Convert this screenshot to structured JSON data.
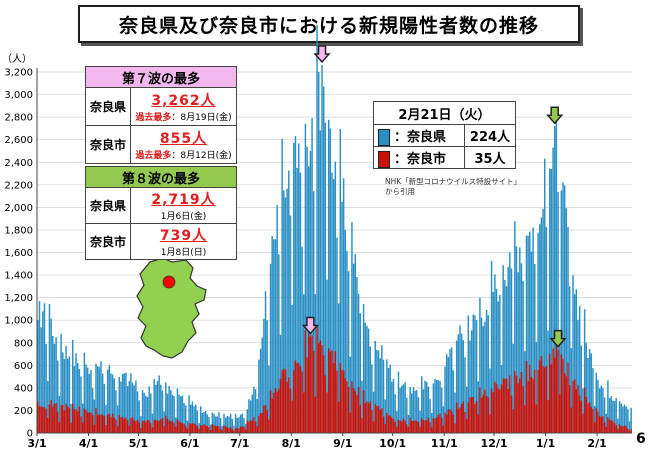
{
  "title": "奈良県及び奈良市における新規陽性者数の推移",
  "page_number": "6",
  "source_note": [
    "NHK「新型コロナウイルス特設サイト」",
    "から引用"
  ],
  "wave7": {
    "header": "第７波の最多",
    "rows": [
      {
        "label": "奈良県",
        "value": "3,262人",
        "sub_prefix": "過去最多",
        "sub_date": "：8月19日(金)"
      },
      {
        "label": "奈良市",
        "value": "855人",
        "sub_prefix": "過去最多",
        "sub_date": "：8月12日(金)"
      }
    ]
  },
  "wave8": {
    "header": "第８波の最多",
    "rows": [
      {
        "label": "奈良県",
        "value": "2,719人",
        "sub_date": "1月6日(金)"
      },
      {
        "label": "奈良市",
        "value": "739人",
        "sub_date": "1月8日(日)"
      }
    ]
  },
  "latest": {
    "date": "2月21日（火）",
    "rows": [
      {
        "label": "：奈良県",
        "value": "224人",
        "color": "#2a8fc4"
      },
      {
        "label": "：奈良市",
        "value": "35人",
        "color": "#c8140c"
      }
    ]
  },
  "colors": {
    "pref": "#2a8fc4",
    "city": "#c8140c",
    "map_fill": "#92d050",
    "map_dot": "#ff0000",
    "arrow_pink": "#f2b8ee",
    "arrow_green": "#93c94f"
  },
  "chart_data": {
    "type": "bar",
    "ylabel": "（人）",
    "ylim": [
      0,
      3200
    ],
    "yticks": [
      "0",
      "200",
      "400",
      "600",
      "800",
      "1,000",
      "1,200",
      "1,400",
      "1,600",
      "1,800",
      "2,000",
      "2,200",
      "2,400",
      "2,600",
      "2,800",
      "3,000",
      "3,200"
    ],
    "x_range": [
      "2022-03-01",
      "2023-02-21"
    ],
    "xticks": [
      {
        "date": "2022-03-01",
        "label": "3/1"
      },
      {
        "date": "2022-04-01",
        "label": "4/1"
      },
      {
        "date": "2022-05-01",
        "label": "5/1"
      },
      {
        "date": "2022-06-01",
        "label": "6/1"
      },
      {
        "date": "2022-07-01",
        "label": "7/1"
      },
      {
        "date": "2022-08-01",
        "label": "8/1"
      },
      {
        "date": "2022-09-01",
        "label": "9/1"
      },
      {
        "date": "2022-10-01",
        "label": "10/1"
      },
      {
        "date": "2022-11-01",
        "label": "11/1"
      },
      {
        "date": "2022-12-01",
        "label": "12/1"
      },
      {
        "date": "2023-01-01",
        "label": "1/1"
      },
      {
        "date": "2023-02-01",
        "label": "2/1"
      }
    ],
    "grid": true,
    "stacking": "overlay",
    "series": [
      {
        "name": "奈良県",
        "anchors": [
          [
            "2022-03-01",
            1000
          ],
          [
            "2022-03-05",
            1150
          ],
          [
            "2022-03-12",
            850
          ],
          [
            "2022-03-20",
            680
          ],
          [
            "2022-03-31",
            580
          ],
          [
            "2022-04-12",
            560
          ],
          [
            "2022-04-25",
            460
          ],
          [
            "2022-05-05",
            330
          ],
          [
            "2022-05-12",
            460
          ],
          [
            "2022-05-20",
            380
          ],
          [
            "2022-06-01",
            250
          ],
          [
            "2022-06-15",
            170
          ],
          [
            "2022-06-30",
            140
          ],
          [
            "2022-07-05",
            210
          ],
          [
            "2022-07-12",
            650
          ],
          [
            "2022-07-19",
            1500
          ],
          [
            "2022-07-27",
            2150
          ],
          [
            "2022-08-04",
            2350
          ],
          [
            "2022-08-12",
            2500
          ],
          [
            "2022-08-19",
            3262
          ],
          [
            "2022-08-24",
            2700
          ],
          [
            "2022-08-31",
            2050
          ],
          [
            "2022-09-07",
            1500
          ],
          [
            "2022-09-15",
            950
          ],
          [
            "2022-09-25",
            650
          ],
          [
            "2022-10-05",
            400
          ],
          [
            "2022-10-15",
            380
          ],
          [
            "2022-10-28",
            470
          ],
          [
            "2022-11-08",
            820
          ],
          [
            "2022-11-20",
            1000
          ],
          [
            "2022-11-30",
            1250
          ],
          [
            "2022-12-10",
            1600
          ],
          [
            "2022-12-20",
            1750
          ],
          [
            "2022-12-28",
            1850
          ],
          [
            "2023-01-06",
            2719
          ],
          [
            "2023-01-10",
            2150
          ],
          [
            "2023-01-17",
            1400
          ],
          [
            "2023-01-25",
            800
          ],
          [
            "2023-02-03",
            420
          ],
          [
            "2023-02-12",
            310
          ],
          [
            "2023-02-21",
            224
          ]
        ]
      },
      {
        "name": "奈良市",
        "anchors": [
          [
            "2022-03-01",
            280
          ],
          [
            "2022-03-20",
            220
          ],
          [
            "2022-04-12",
            160
          ],
          [
            "2022-05-05",
            100
          ],
          [
            "2022-05-15",
            130
          ],
          [
            "2022-06-01",
            80
          ],
          [
            "2022-06-30",
            40
          ],
          [
            "2022-07-12",
            150
          ],
          [
            "2022-07-25",
            480
          ],
          [
            "2022-08-05",
            620
          ],
          [
            "2022-08-12",
            855
          ],
          [
            "2022-08-19",
            780
          ],
          [
            "2022-08-31",
            560
          ],
          [
            "2022-09-15",
            280
          ],
          [
            "2022-10-05",
            110
          ],
          [
            "2022-10-25",
            130
          ],
          [
            "2022-11-15",
            270
          ],
          [
            "2022-12-05",
            430
          ],
          [
            "2022-12-25",
            560
          ],
          [
            "2023-01-08",
            739
          ],
          [
            "2023-01-17",
            460
          ],
          [
            "2023-02-03",
            140
          ],
          [
            "2023-02-21",
            35
          ]
        ]
      }
    ],
    "markers": [
      {
        "date": "2022-08-19",
        "value": 3262,
        "series": "奈良県",
        "color": "#f2b8ee"
      },
      {
        "date": "2022-08-12",
        "value": 855,
        "series": "奈良市",
        "color": "#f2b8ee"
      },
      {
        "date": "2023-01-06",
        "value": 2719,
        "series": "奈良県",
        "color": "#93c94f"
      },
      {
        "date": "2023-01-08",
        "value": 739,
        "series": "奈良市",
        "color": "#93c94f"
      }
    ]
  }
}
